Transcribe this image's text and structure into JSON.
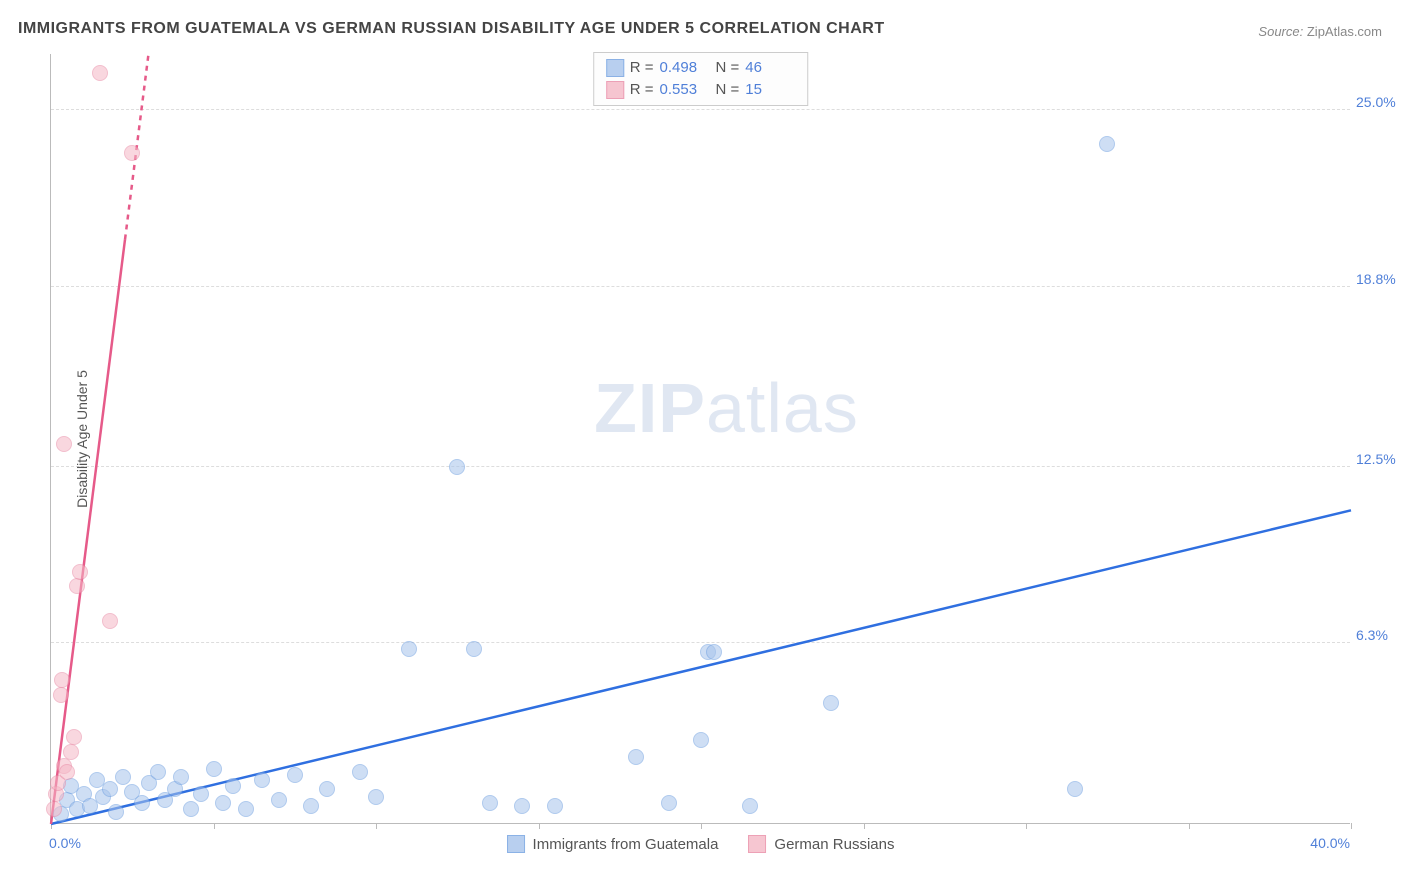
{
  "title": "IMMIGRANTS FROM GUATEMALA VS GERMAN RUSSIAN DISABILITY AGE UNDER 5 CORRELATION CHART",
  "source_label": "Source:",
  "source_value": "ZipAtlas.com",
  "watermark": {
    "part1": "ZIP",
    "part2": "atlas"
  },
  "chart": {
    "type": "scatter",
    "xlim": [
      0,
      40
    ],
    "ylim": [
      0,
      27
    ],
    "x_min_label": "0.0%",
    "x_max_label": "40.0%",
    "x_ticks": [
      0,
      5,
      10,
      15,
      20,
      25,
      30,
      35,
      40
    ],
    "y_gridlines": [
      {
        "value": 6.3,
        "label": "6.3%"
      },
      {
        "value": 12.5,
        "label": "12.5%"
      },
      {
        "value": 18.8,
        "label": "18.8%"
      },
      {
        "value": 25.0,
        "label": "25.0%"
      }
    ],
    "y_axis_title": "Disability Age Under 5",
    "background_color": "#ffffff",
    "grid_color": "#dddddd",
    "series": [
      {
        "name": "Immigrants from Guatemala",
        "fill": "#a7c4ec",
        "stroke": "#6f9fe0",
        "fill_opacity": 0.55,
        "marker_radius": 8,
        "r_value": "0.498",
        "n_value": "46",
        "trend": {
          "x1": 0,
          "y1": 0,
          "x2": 40,
          "y2": 11.0,
          "color": "#2f6fe0",
          "width": 2.5
        },
        "points": [
          {
            "x": 0.3,
            "y": 0.3
          },
          {
            "x": 0.5,
            "y": 0.8
          },
          {
            "x": 0.6,
            "y": 1.3
          },
          {
            "x": 0.8,
            "y": 0.5
          },
          {
            "x": 1.0,
            "y": 1.0
          },
          {
            "x": 1.2,
            "y": 0.6
          },
          {
            "x": 1.4,
            "y": 1.5
          },
          {
            "x": 1.6,
            "y": 0.9
          },
          {
            "x": 1.8,
            "y": 1.2
          },
          {
            "x": 2.0,
            "y": 0.4
          },
          {
            "x": 2.2,
            "y": 1.6
          },
          {
            "x": 2.5,
            "y": 1.1
          },
          {
            "x": 2.8,
            "y": 0.7
          },
          {
            "x": 3.0,
            "y": 1.4
          },
          {
            "x": 3.3,
            "y": 1.8
          },
          {
            "x": 3.5,
            "y": 0.8
          },
          {
            "x": 3.8,
            "y": 1.2
          },
          {
            "x": 4.0,
            "y": 1.6
          },
          {
            "x": 4.3,
            "y": 0.5
          },
          {
            "x": 4.6,
            "y": 1.0
          },
          {
            "x": 5.0,
            "y": 1.9
          },
          {
            "x": 5.3,
            "y": 0.7
          },
          {
            "x": 5.6,
            "y": 1.3
          },
          {
            "x": 6.0,
            "y": 0.5
          },
          {
            "x": 6.5,
            "y": 1.5
          },
          {
            "x": 7.0,
            "y": 0.8
          },
          {
            "x": 7.5,
            "y": 1.7
          },
          {
            "x": 8.0,
            "y": 0.6
          },
          {
            "x": 8.5,
            "y": 1.2
          },
          {
            "x": 9.5,
            "y": 1.8
          },
          {
            "x": 10.0,
            "y": 0.9
          },
          {
            "x": 11.0,
            "y": 6.1
          },
          {
            "x": 12.5,
            "y": 12.5
          },
          {
            "x": 13.0,
            "y": 6.1
          },
          {
            "x": 13.5,
            "y": 0.7
          },
          {
            "x": 14.5,
            "y": 0.6
          },
          {
            "x": 15.5,
            "y": 0.6
          },
          {
            "x": 18.0,
            "y": 2.3
          },
          {
            "x": 19.0,
            "y": 0.7
          },
          {
            "x": 20.0,
            "y": 2.9
          },
          {
            "x": 20.2,
            "y": 6.0
          },
          {
            "x": 20.4,
            "y": 6.0
          },
          {
            "x": 21.5,
            "y": 0.6
          },
          {
            "x": 24.0,
            "y": 4.2
          },
          {
            "x": 31.5,
            "y": 1.2
          },
          {
            "x": 32.5,
            "y": 23.8
          }
        ]
      },
      {
        "name": "German Russians",
        "fill": "#f5b8c6",
        "stroke": "#e98aa5",
        "fill_opacity": 0.55,
        "marker_radius": 8,
        "r_value": "0.553",
        "n_value": "15",
        "trend": {
          "x1": 0,
          "y1": 0,
          "x2": 3.0,
          "y2": 27.0,
          "color": "#e65a89",
          "width": 2.5,
          "dashed_from": 20.5
        },
        "points": [
          {
            "x": 0.1,
            "y": 0.5
          },
          {
            "x": 0.15,
            "y": 1.0
          },
          {
            "x": 0.2,
            "y": 1.4
          },
          {
            "x": 0.3,
            "y": 4.5
          },
          {
            "x": 0.35,
            "y": 5.0
          },
          {
            "x": 0.4,
            "y": 2.0
          },
          {
            "x": 0.5,
            "y": 1.8
          },
          {
            "x": 0.6,
            "y": 2.5
          },
          {
            "x": 0.7,
            "y": 3.0
          },
          {
            "x": 0.8,
            "y": 8.3
          },
          {
            "x": 0.9,
            "y": 8.8
          },
          {
            "x": 0.4,
            "y": 13.3
          },
          {
            "x": 1.8,
            "y": 7.1
          },
          {
            "x": 2.5,
            "y": 23.5
          },
          {
            "x": 1.5,
            "y": 26.3
          }
        ]
      }
    ],
    "legend_top_labels": {
      "r": "R =",
      "n": "N ="
    }
  }
}
